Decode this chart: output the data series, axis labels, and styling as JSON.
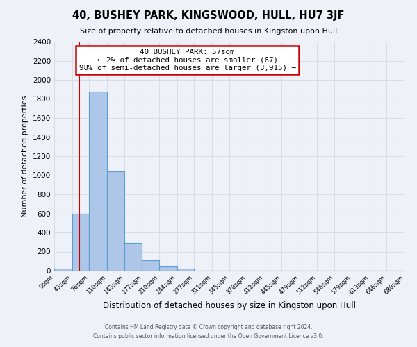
{
  "title": "40, BUSHEY PARK, KINGSWOOD, HULL, HU7 3JF",
  "subtitle": "Size of property relative to detached houses in Kingston upon Hull",
  "xlabel": "Distribution of detached houses by size in Kingston upon Hull",
  "ylabel": "Number of detached properties",
  "bin_edges": [
    9,
    43,
    76,
    110,
    143,
    177,
    210,
    244,
    277,
    311,
    345,
    378,
    412,
    445,
    479,
    512,
    546,
    579,
    613,
    646,
    680
  ],
  "bar_heights": [
    20,
    600,
    1880,
    1040,
    290,
    110,
    45,
    20,
    0,
    0,
    0,
    0,
    0,
    0,
    0,
    0,
    0,
    0,
    0,
    0
  ],
  "bar_color": "#aec6e8",
  "bar_edge_color": "#5a9fd4",
  "property_line_x": 57,
  "property_line_color": "#cc0000",
  "annotation_title": "40 BUSHEY PARK: 57sqm",
  "annotation_line1": "← 2% of detached houses are smaller (67)",
  "annotation_line2": "98% of semi-detached houses are larger (3,915) →",
  "annotation_box_facecolor": "#ffffff",
  "annotation_box_edgecolor": "#cc0000",
  "ylim": [
    0,
    2400
  ],
  "yticks": [
    0,
    200,
    400,
    600,
    800,
    1000,
    1200,
    1400,
    1600,
    1800,
    2000,
    2200,
    2400
  ],
  "background_color": "#eef2f8",
  "grid_color": "#d8dee8",
  "footer1": "Contains HM Land Registry data © Crown copyright and database right 2024.",
  "footer2": "Contains public sector information licensed under the Open Government Licence v3.0."
}
